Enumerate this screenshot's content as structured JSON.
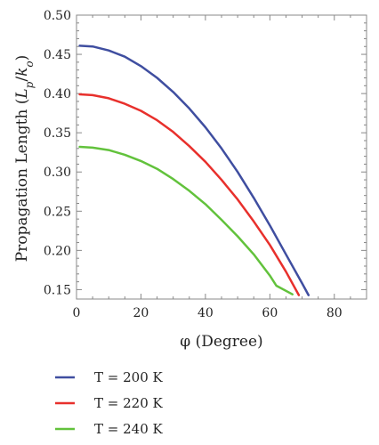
{
  "chart_data": {
    "type": "line",
    "title": "",
    "xlabel": "φ (Degree)",
    "ylabel": "Propagation Length (",
    "ylabel_var": "L",
    "ylabel_sub1": "p",
    "ylabel_slash": "/",
    "ylabel_var2": "k",
    "ylabel_sub2": "o",
    "ylabel_close": ")",
    "xlim": [
      0,
      90
    ],
    "ylim": [
      0.138,
      0.5
    ],
    "xticks": [
      0,
      20,
      40,
      60,
      80
    ],
    "yticks": [
      0.15,
      0.2,
      0.25,
      0.3,
      0.35,
      0.4,
      0.45,
      0.5
    ],
    "xtick_labels": [
      "0",
      "20",
      "40",
      "60",
      "80"
    ],
    "ytick_labels": [
      "0.15",
      "0.20",
      "0.25",
      "0.30",
      "0.35",
      "0.40",
      "0.45",
      "0.50"
    ],
    "grid": false,
    "legend_position": "bottom",
    "series": [
      {
        "name": "T = 200 K",
        "color": "#3f4ea0",
        "x": [
          1,
          5,
          10,
          15,
          20,
          25,
          30,
          35,
          40,
          45,
          50,
          55,
          60,
          65,
          70,
          72
        ],
        "y": [
          0.461,
          0.46,
          0.455,
          0.447,
          0.435,
          0.42,
          0.402,
          0.381,
          0.357,
          0.33,
          0.3,
          0.267,
          0.232,
          0.195,
          0.158,
          0.143
        ]
      },
      {
        "name": "T = 220 K",
        "color": "#e8302c",
        "x": [
          1,
          5,
          10,
          15,
          20,
          25,
          30,
          35,
          40,
          45,
          50,
          55,
          60,
          65,
          69
        ],
        "y": [
          0.399,
          0.398,
          0.394,
          0.387,
          0.378,
          0.366,
          0.351,
          0.333,
          0.313,
          0.29,
          0.265,
          0.237,
          0.207,
          0.173,
          0.143
        ]
      },
      {
        "name": "T = 240 K",
        "color": "#62c23c",
        "x": [
          1,
          5,
          10,
          15,
          20,
          25,
          30,
          35,
          40,
          45,
          50,
          55,
          60,
          62,
          67
        ],
        "y": [
          0.332,
          0.331,
          0.328,
          0.322,
          0.314,
          0.304,
          0.291,
          0.276,
          0.259,
          0.239,
          0.218,
          0.195,
          0.168,
          0.155,
          0.144
        ]
      }
    ]
  }
}
